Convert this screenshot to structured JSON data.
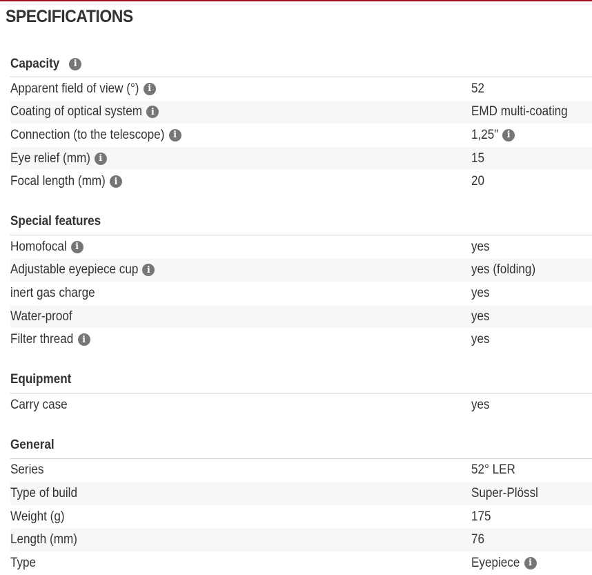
{
  "title": "SPECIFICATIONS",
  "colors": {
    "accent": "#a3121e",
    "info_icon": "#767676",
    "row_alt": "#f7f7f7"
  },
  "sections": [
    {
      "title": "Capacity",
      "info": true,
      "rows": [
        {
          "label": "Apparent field of view (°)",
          "label_info": true,
          "value": "52"
        },
        {
          "label": "Coating of optical system",
          "label_info": true,
          "value": "EMD multi-coating"
        },
        {
          "label": "Connection (to the telescope)",
          "label_info": true,
          "value": "1,25\"",
          "value_info": true
        },
        {
          "label": "Eye relief (mm)",
          "label_info": true,
          "value": "15"
        },
        {
          "label": "Focal length (mm)",
          "label_info": true,
          "value": "20"
        }
      ]
    },
    {
      "title": "Special features",
      "rows": [
        {
          "label": "Homofocal",
          "label_info": true,
          "value": "yes"
        },
        {
          "label": "Adjustable eyepiece cup",
          "label_info": true,
          "value": "yes (folding)"
        },
        {
          "label": "inert gas charge",
          "value": "yes"
        },
        {
          "label": "Water-proof",
          "value": "yes"
        },
        {
          "label": "Filter thread",
          "label_info": true,
          "value": "yes"
        }
      ]
    },
    {
      "title": "Equipment",
      "rows": [
        {
          "label": "Carry case",
          "value": "yes"
        }
      ]
    },
    {
      "title": "General",
      "rows": [
        {
          "label": "Series",
          "value": "52° LER"
        },
        {
          "label": "Type of build",
          "value": "Super-Plössl"
        },
        {
          "label": "Weight (g)",
          "value": "175"
        },
        {
          "label": "Length (mm)",
          "value": "76"
        },
        {
          "label": "Type",
          "value": "Eyepiece",
          "value_info": true
        }
      ]
    }
  ]
}
